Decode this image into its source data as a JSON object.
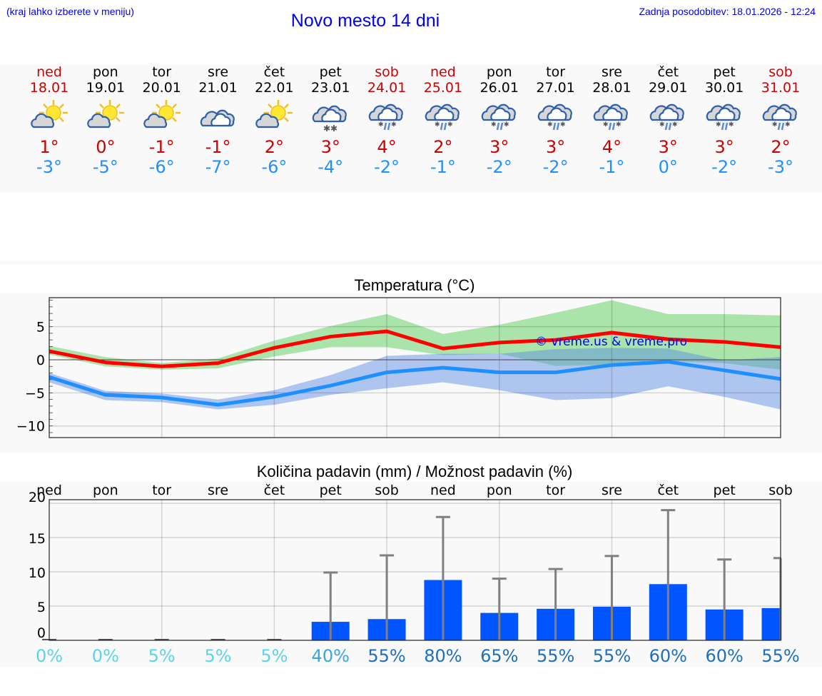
{
  "header": {
    "region_hint": "(kraj lahko izberete v meniju)",
    "title": "Novo mesto 14 dni",
    "last_update": "Zadnja posodobitev: 18.01.2026 - 12:24"
  },
  "colors": {
    "link_blue": "#0000ee",
    "weekend_red": "#cc0000",
    "tmax_red": "#cc0000",
    "tmin_blue": "#1e90ff",
    "max_line": "#ff0000",
    "min_line": "#1e8fff",
    "max_band": "#a8e6a8",
    "min_band": "#a9c3f2",
    "bar_blue": "#0055ff",
    "errorbar_gray": "#808080"
  },
  "days": [
    {
      "name": "ned",
      "date": "18.01",
      "weekend": true,
      "icon": "partly-sunny-icon",
      "tmax": "1°",
      "tmin": "-3°"
    },
    {
      "name": "pon",
      "date": "19.01",
      "weekend": false,
      "icon": "partly-sunny-icon",
      "tmax": "0°",
      "tmin": "-5°"
    },
    {
      "name": "tor",
      "date": "20.01",
      "weekend": false,
      "icon": "partly-sunny-icon",
      "tmax": "-1°",
      "tmin": "-6°"
    },
    {
      "name": "sre",
      "date": "21.01",
      "weekend": false,
      "icon": "cloudy-icon",
      "tmax": "-1°",
      "tmin": "-7°"
    },
    {
      "name": "čet",
      "date": "22.01",
      "weekend": false,
      "icon": "partly-sunny-icon",
      "tmax": "2°",
      "tmin": "-6°"
    },
    {
      "name": "pet",
      "date": "23.01",
      "weekend": false,
      "icon": "cloud-snow-icon",
      "tmax": "3°",
      "tmin": "-4°"
    },
    {
      "name": "sob",
      "date": "24.01",
      "weekend": true,
      "icon": "cloud-sleet-icon",
      "tmax": "4°",
      "tmin": "-2°"
    },
    {
      "name": "ned",
      "date": "25.01",
      "weekend": true,
      "icon": "cloud-sleet-icon",
      "tmax": "2°",
      "tmin": "-1°"
    },
    {
      "name": "pon",
      "date": "26.01",
      "weekend": false,
      "icon": "cloud-sleet-icon",
      "tmax": "3°",
      "tmin": "-2°"
    },
    {
      "name": "tor",
      "date": "27.01",
      "weekend": false,
      "icon": "cloud-sleet-icon",
      "tmax": "3°",
      "tmin": "-2°"
    },
    {
      "name": "sre",
      "date": "28.01",
      "weekend": false,
      "icon": "cloud-sleet-icon",
      "tmax": "4°",
      "tmin": "-1°"
    },
    {
      "name": "čet",
      "date": "29.01",
      "weekend": false,
      "icon": "cloud-sleet-icon",
      "tmax": "3°",
      "tmin": "0°"
    },
    {
      "name": "pet",
      "date": "30.01",
      "weekend": false,
      "icon": "cloud-sleet-icon",
      "tmax": "3°",
      "tmin": "-2°"
    },
    {
      "name": "sob",
      "date": "31.01",
      "weekend": true,
      "icon": "cloud-sleet-icon",
      "tmax": "2°",
      "tmin": "-3°"
    }
  ],
  "chart_data": [
    {
      "type": "line",
      "title": "Temperatura (°C)",
      "xlabel": "",
      "ylabel": "",
      "x": [
        "18.01",
        "19.01",
        "20.01",
        "21.01",
        "22.01",
        "23.01",
        "24.01",
        "25.01",
        "26.01",
        "27.01",
        "28.01",
        "29.01",
        "30.01",
        "31.01"
      ],
      "ylim": [
        -11.8,
        9.4
      ],
      "yticks": [
        "5",
        "0",
        "−5",
        "−10"
      ],
      "grid": true,
      "watermark": "© vreme.us & vreme.pro",
      "series": [
        {
          "name": "Max",
          "color": "#ff0000",
          "values": [
            1.3,
            -0.4,
            -1.0,
            -0.5,
            1.8,
            3.5,
            4.3,
            1.7,
            2.6,
            3.0,
            4.1,
            3.1,
            2.7,
            1.9
          ],
          "band_low": [
            0.8,
            -1.0,
            -1.5,
            -1.3,
            0.5,
            1.9,
            1.9,
            0.7,
            0.9,
            -0.9,
            -0.8,
            -0.2,
            -0.5,
            -1.5
          ],
          "band_high": [
            2.1,
            0.4,
            -0.5,
            0.2,
            2.9,
            5.1,
            6.9,
            3.9,
            5.3,
            7.1,
            9.0,
            6.9,
            6.9,
            6.7
          ]
        },
        {
          "name": "Min",
          "color": "#1e8fff",
          "values": [
            -2.6,
            -5.3,
            -5.7,
            -6.8,
            -5.6,
            -3.9,
            -1.9,
            -1.2,
            -1.9,
            -1.9,
            -0.8,
            -0.3,
            -1.6,
            -2.9
          ],
          "band_low": [
            -3.4,
            -6.1,
            -6.4,
            -7.5,
            -6.8,
            -5.3,
            -4.3,
            -3.4,
            -4.6,
            -6.1,
            -5.8,
            -4.0,
            -5.6,
            -7.5
          ],
          "band_high": [
            -2.0,
            -4.7,
            -5.1,
            -6.0,
            -4.6,
            -2.3,
            0.6,
            0.9,
            0.9,
            1.6,
            1.8,
            1.7,
            -0.1,
            0.4
          ]
        }
      ]
    },
    {
      "type": "bar",
      "title": "Količina padavin (mm) / Možnost padavin (%)",
      "categories": [
        "ned",
        "pon",
        "tor",
        "sre",
        "čet",
        "pet",
        "sob",
        "ned",
        "pon",
        "tor",
        "sre",
        "čet",
        "pet",
        "sob"
      ],
      "ylabel": "",
      "ylim": [
        0,
        20
      ],
      "yticks": [
        "20",
        "15",
        "10",
        "5",
        "0"
      ],
      "grid": true,
      "values": [
        0,
        0,
        0,
        0,
        0,
        2.7,
        3.1,
        8.8,
        4.0,
        4.6,
        4.9,
        8.2,
        4.5,
        4.7
      ],
      "error_upper": [
        0,
        0,
        0,
        0,
        0,
        9.9,
        12.4,
        18.0,
        9.0,
        10.4,
        12.3,
        19.0,
        11.8,
        12.0
      ],
      "probability": [
        "0%",
        "0%",
        "5%",
        "5%",
        "5%",
        "40%",
        "55%",
        "80%",
        "65%",
        "55%",
        "55%",
        "60%",
        "60%",
        "55%"
      ]
    }
  ],
  "precip_prob_colors": [
    "#5bd5e5",
    "#5bd5e5",
    "#5bd5e5",
    "#5bd5e5",
    "#5bd5e5",
    "#3aa6da",
    "#1f6fb8",
    "#1f6fb8",
    "#1f6fb8",
    "#1f6fb8",
    "#1f6fb8",
    "#1f6fb8",
    "#1f6fb8",
    "#1f6fb8"
  ]
}
